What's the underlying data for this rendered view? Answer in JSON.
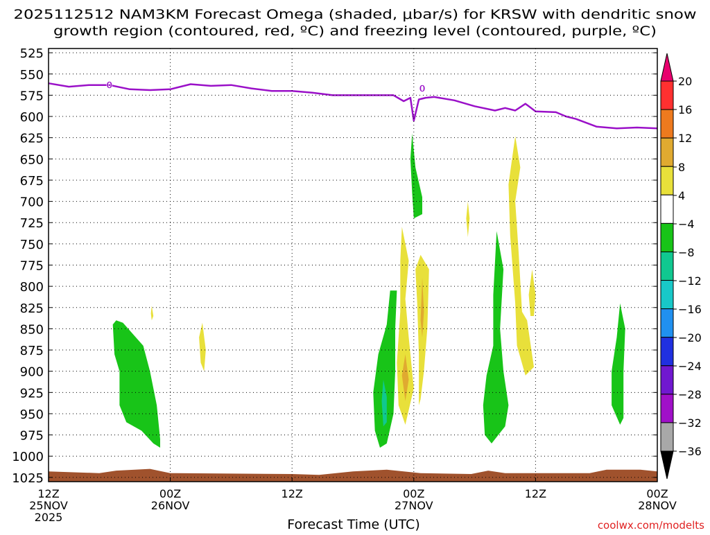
{
  "chart_data": {
    "type": "heatmap",
    "title_line1": "2025112512 NAM3KM Forecast Omega (shaded, μbar/s) for KRSW with dendritic snow",
    "title_line2": "growth region (contoured, red, ºC) and freezing level (contoured, purple, ºC)",
    "xlabel": "Forecast Time (UTC)",
    "credit": "coolwx.com/modelts",
    "x_range": [
      0,
      36
    ],
    "x_unit": "forecast hours from 12Z 25NOV",
    "y_range": [
      520,
      1030
    ],
    "y_unit": "hPa",
    "y_ticks": [
      525,
      550,
      575,
      600,
      625,
      650,
      675,
      700,
      725,
      750,
      775,
      800,
      825,
      850,
      875,
      900,
      925,
      950,
      975,
      1000,
      1025
    ],
    "x_ticks": [
      {
        "hour": 0,
        "time": "12Z",
        "date": "25NOV",
        "year": "2025"
      },
      {
        "hour": 7.2,
        "time": "00Z",
        "date": "26NOV",
        "year": ""
      },
      {
        "hour": 14.4,
        "time": "12Z",
        "date": "",
        "year": ""
      },
      {
        "hour": 21.6,
        "time": "00Z",
        "date": "27NOV",
        "year": ""
      },
      {
        "hour": 28.8,
        "time": "12Z",
        "date": "",
        "year": ""
      },
      {
        "hour": 36,
        "time": "00Z",
        "date": "28NOV",
        "year": ""
      }
    ],
    "colorbar": {
      "labels": [
        "20",
        "16",
        "12",
        "8",
        "4",
        "−4",
        "−8",
        "−12",
        "−16",
        "−20",
        "−24",
        "−28",
        "−32",
        "−36"
      ],
      "colors": [
        "#e8006e",
        "#ff3030",
        "#ee7a1e",
        "#e0aa30",
        "#e8e03a",
        "#ffffff",
        "#18c418",
        "#10c890",
        "#18c8c8",
        "#2090f0",
        "#2030e0",
        "#7018d0",
        "#a010c8",
        "#a8a8a8",
        "#000000"
      ]
    },
    "freezing_level": {
      "color": "#9a10c8",
      "label": "0",
      "label_at": [
        [
          3.6,
          563
        ],
        [
          22.1,
          567
        ]
      ],
      "points": [
        [
          0,
          561
        ],
        [
          1.2,
          565
        ],
        [
          2.4,
          563
        ],
        [
          3.6,
          563
        ],
        [
          4.8,
          568
        ],
        [
          6,
          569
        ],
        [
          7.2,
          568
        ],
        [
          8.4,
          562
        ],
        [
          9.6,
          564
        ],
        [
          10.8,
          563
        ],
        [
          12,
          567
        ],
        [
          13.2,
          570
        ],
        [
          14.4,
          570
        ],
        [
          15.6,
          572
        ],
        [
          16.8,
          575
        ],
        [
          18,
          575
        ],
        [
          19.2,
          575
        ],
        [
          20.4,
          575
        ],
        [
          21,
          582
        ],
        [
          21.4,
          578
        ],
        [
          21.6,
          605
        ],
        [
          21.9,
          580
        ],
        [
          22.3,
          578
        ],
        [
          22.8,
          577
        ],
        [
          24,
          581
        ],
        [
          25.2,
          588
        ],
        [
          26.4,
          593
        ],
        [
          27,
          590
        ],
        [
          27.6,
          593
        ],
        [
          28.2,
          585
        ],
        [
          28.8,
          594
        ],
        [
          30,
          595
        ],
        [
          30.6,
          600
        ],
        [
          31.2,
          603
        ],
        [
          32.4,
          612
        ],
        [
          33.6,
          614
        ],
        [
          34.8,
          613
        ],
        [
          36,
          614
        ]
      ]
    },
    "omega_regions": [
      {
        "value": -6,
        "color": "#18c418",
        "points": [
          [
            4,
            840
          ],
          [
            4.4,
            843
          ],
          [
            5.6,
            870
          ],
          [
            6,
            900
          ],
          [
            6.4,
            940
          ],
          [
            6.6,
            980
          ],
          [
            6.6,
            990
          ],
          [
            6.2,
            985
          ],
          [
            5.5,
            970
          ],
          [
            4.6,
            960
          ],
          [
            4.2,
            940
          ],
          [
            4.2,
            900
          ],
          [
            3.9,
            880
          ],
          [
            3.8,
            845
          ]
        ]
      },
      {
        "value": 5,
        "color": "#e8e03a",
        "points": [
          [
            6.1,
            823
          ],
          [
            6.2,
            835
          ],
          [
            6.1,
            840
          ],
          [
            6.05,
            832
          ]
        ]
      },
      {
        "value": 5,
        "color": "#e8e03a",
        "points": [
          [
            9.1,
            843
          ],
          [
            9.3,
            875
          ],
          [
            9.2,
            900
          ],
          [
            9,
            890
          ],
          [
            8.9,
            860
          ]
        ]
      },
      {
        "value": -6,
        "color": "#18c418",
        "points": [
          [
            20.2,
            805
          ],
          [
            20.6,
            805
          ],
          [
            20.5,
            850
          ],
          [
            20.5,
            900
          ],
          [
            20.4,
            950
          ],
          [
            20,
            985
          ],
          [
            19.6,
            990
          ],
          [
            19.3,
            970
          ],
          [
            19.2,
            925
          ],
          [
            19.5,
            880
          ],
          [
            20,
            845
          ]
        ]
      },
      {
        "value": -13,
        "color": "#10c890",
        "points": [
          [
            19.8,
            910
          ],
          [
            20,
            930
          ],
          [
            20,
            960
          ],
          [
            19.8,
            965
          ],
          [
            19.7,
            935
          ]
        ]
      },
      {
        "value": 5,
        "color": "#e8e03a",
        "points": [
          [
            20.9,
            730
          ],
          [
            21.3,
            770
          ],
          [
            21.1,
            815
          ],
          [
            21.3,
            860
          ],
          [
            21.6,
            920
          ],
          [
            21.1,
            963
          ],
          [
            20.7,
            940
          ],
          [
            20.6,
            890
          ],
          [
            20.8,
            830
          ],
          [
            20.8,
            770
          ]
        ]
      },
      {
        "value": 9,
        "color": "#e0aa30",
        "points": [
          [
            21.1,
            880
          ],
          [
            21.3,
            910
          ],
          [
            21.1,
            935
          ],
          [
            20.9,
            905
          ]
        ]
      },
      {
        "value": 5,
        "color": "#e8e03a",
        "points": [
          [
            22,
            763
          ],
          [
            22.5,
            780
          ],
          [
            22.4,
            850
          ],
          [
            22.2,
            900
          ],
          [
            22,
            933
          ],
          [
            21.9,
            940
          ],
          [
            21.9,
            880
          ],
          [
            21.8,
            820
          ],
          [
            21.7,
            780
          ]
        ]
      },
      {
        "value": 9,
        "color": "#e0aa30",
        "points": [
          [
            22.1,
            790
          ],
          [
            22.2,
            830
          ],
          [
            22.1,
            860
          ],
          [
            22,
            840
          ]
        ]
      },
      {
        "value": -6,
        "color": "#18c418",
        "points": [
          [
            21.5,
            620
          ],
          [
            21.7,
            660
          ],
          [
            22.1,
            695
          ],
          [
            22.1,
            715
          ],
          [
            21.6,
            720
          ],
          [
            21.5,
            690
          ],
          [
            21.4,
            650
          ]
        ]
      },
      {
        "value": 5,
        "color": "#e8e03a",
        "points": [
          [
            24.8,
            700
          ],
          [
            24.9,
            720
          ],
          [
            24.8,
            742
          ],
          [
            24.7,
            720
          ]
        ]
      },
      {
        "value": -6,
        "color": "#18c418",
        "points": [
          [
            26.5,
            735
          ],
          [
            26.9,
            780
          ],
          [
            26.7,
            850
          ],
          [
            26.9,
            900
          ],
          [
            27.2,
            940
          ],
          [
            27,
            965
          ],
          [
            26.2,
            985
          ],
          [
            25.8,
            975
          ],
          [
            25.7,
            940
          ],
          [
            25.9,
            905
          ],
          [
            26.3,
            870
          ],
          [
            26.3,
            810
          ]
        ]
      },
      {
        "value": 5,
        "color": "#e8e03a",
        "points": [
          [
            27.6,
            623
          ],
          [
            27.9,
            660
          ],
          [
            27.6,
            700
          ],
          [
            27.8,
            760
          ],
          [
            28,
            830
          ],
          [
            28.3,
            840
          ],
          [
            28.7,
            895
          ],
          [
            28.2,
            905
          ],
          [
            27.7,
            870
          ],
          [
            27.6,
            820
          ],
          [
            27.3,
            740
          ],
          [
            27.2,
            680
          ]
        ]
      },
      {
        "value": 5,
        "color": "#e8e03a",
        "points": [
          [
            28.6,
            780
          ],
          [
            28.8,
            810
          ],
          [
            28.7,
            835
          ],
          [
            28.5,
            835
          ],
          [
            28.4,
            810
          ]
        ]
      },
      {
        "value": -6,
        "color": "#18c418",
        "points": [
          [
            33.8,
            820
          ],
          [
            34.1,
            850
          ],
          [
            34,
            900
          ],
          [
            34,
            955
          ],
          [
            33.8,
            963
          ],
          [
            33.3,
            940
          ],
          [
            33.3,
            900
          ],
          [
            33.6,
            860
          ]
        ]
      }
    ],
    "terrain": {
      "color": "#a0522d",
      "points": [
        [
          0,
          1018
        ],
        [
          3,
          1020
        ],
        [
          4,
          1017
        ],
        [
          6,
          1015
        ],
        [
          7.2,
          1020
        ],
        [
          14.4,
          1021
        ],
        [
          16,
          1022
        ],
        [
          18,
          1018
        ],
        [
          20,
          1016
        ],
        [
          22,
          1020
        ],
        [
          25,
          1021
        ],
        [
          26,
          1017
        ],
        [
          27,
          1020
        ],
        [
          32,
          1020
        ],
        [
          33,
          1016
        ],
        [
          35,
          1016
        ],
        [
          36,
          1018
        ]
      ]
    }
  }
}
